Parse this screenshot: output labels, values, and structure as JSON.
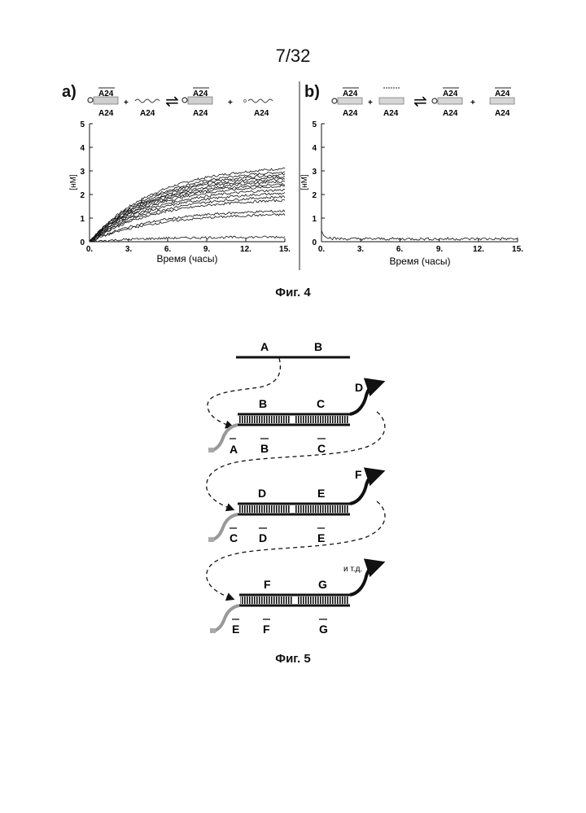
{
  "page_number": "7/32",
  "figure4": {
    "caption": "Фиг. 4",
    "panel_a": {
      "label": "a)",
      "equation": {
        "top1": "A24",
        "bot1": "A24",
        "mid2": "A24",
        "plus": "+",
        "arrows": "⇌",
        "top3": "A24",
        "bot3": "A24",
        "bot4": "A24"
      }
    },
    "panel_b": {
      "label": "b)",
      "equation": {
        "top1": "A24",
        "bot1": "A24",
        "bot2": "A24",
        "plus": "+",
        "arrows": "⇌",
        "top3": "A24",
        "bot3": "A24",
        "top4": "A24",
        "bot4": "A24"
      }
    }
  },
  "chart_data": [
    {
      "type": "line",
      "xlabel": "Время (часы)",
      "ylabel": "[нМ]",
      "xlim": [
        0,
        15
      ],
      "ylim": [
        0,
        5
      ],
      "xticks": [
        "0.",
        "3.",
        "6.",
        "9.",
        "12.",
        "15."
      ],
      "yticks": [
        "0",
        "1",
        "2",
        "3",
        "4",
        "5"
      ],
      "series": [
        {
          "final": 3.1
        },
        {
          "final": 2.95
        },
        {
          "final": 2.85
        },
        {
          "final": 2.75
        },
        {
          "final": 2.65
        },
        {
          "final": 2.55
        },
        {
          "final": 2.45
        },
        {
          "final": 2.35
        },
        {
          "final": 2.2
        },
        {
          "final": 2.05
        },
        {
          "final": 1.9
        },
        {
          "final": 1.75
        },
        {
          "final": 1.3
        },
        {
          "final": 1.15
        },
        {
          "final": 0.2
        }
      ]
    },
    {
      "type": "line",
      "xlabel": "Время (часы)",
      "ylabel": "[нМ]",
      "xlim": [
        0,
        15
      ],
      "ylim": [
        0,
        5
      ],
      "xticks": [
        "0.",
        "3.",
        "6.",
        "9.",
        "12.",
        "15."
      ],
      "yticks": [
        "0",
        "1",
        "2",
        "3",
        "4",
        "5"
      ],
      "series": [
        {
          "start": 0.45,
          "final": 0.12
        }
      ]
    }
  ],
  "figure5": {
    "caption": "Фиг. 5",
    "top_strand": {
      "left": "A",
      "right": "B"
    },
    "duplexes": [
      {
        "top_left": "B",
        "top_right": "C",
        "overhang": "D",
        "bottom_end": "A",
        "bottom_left": "B",
        "bottom_right": "C"
      },
      {
        "top_left": "D",
        "top_right": "E",
        "overhang": "F",
        "bottom_end": "C",
        "bottom_left": "D",
        "bottom_right": "E"
      },
      {
        "top_left": "F",
        "top_right": "G",
        "overhang": "и т.д.",
        "bottom_end": "E",
        "bottom_left": "F",
        "bottom_right": "G"
      }
    ]
  }
}
